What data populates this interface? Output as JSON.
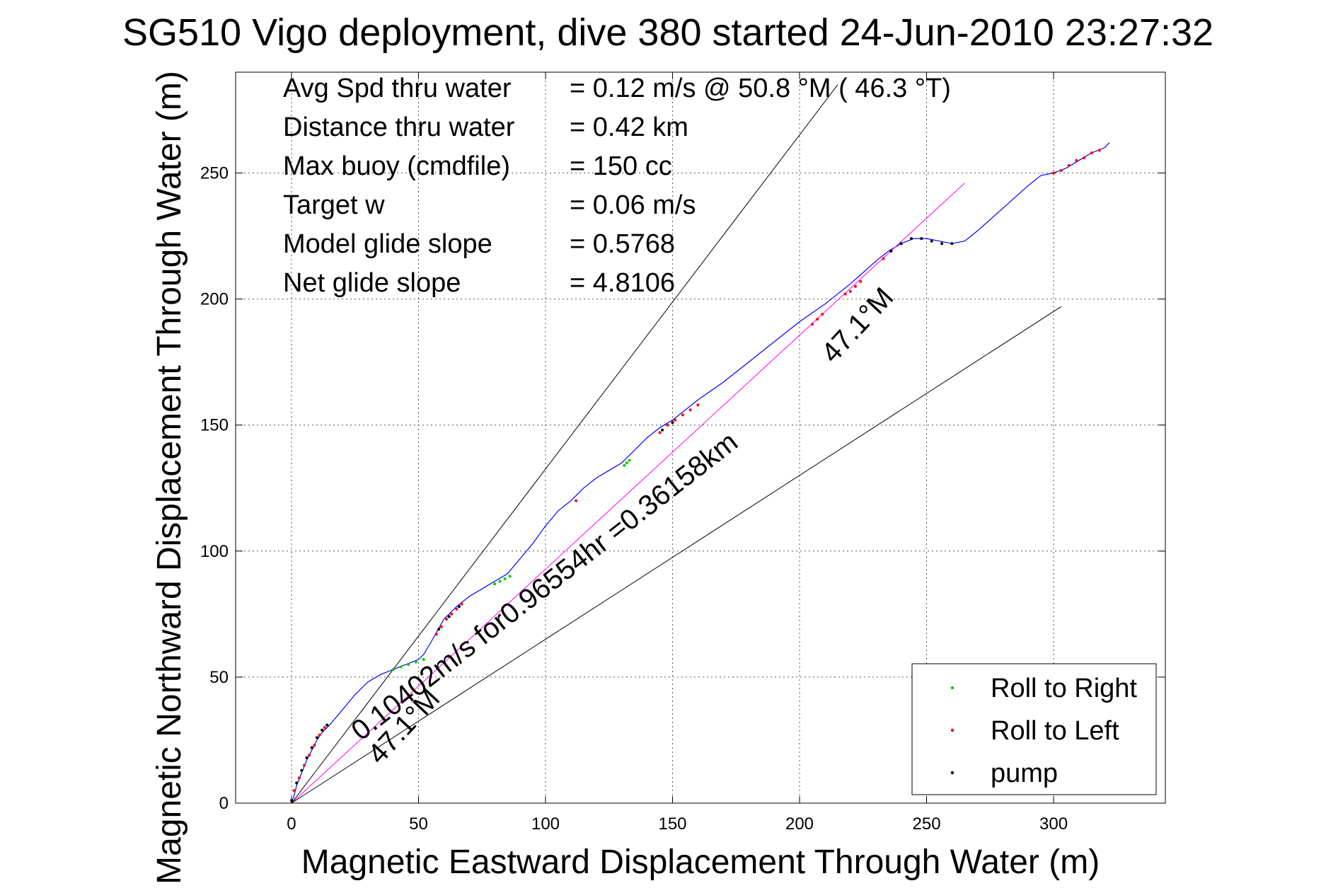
{
  "chart_data": {
    "type": "line",
    "title": "SG510 Vigo deployment, dive 380 started 24-Jun-2010 23:27:32",
    "xlabel": "Magnetic Eastward Displacement Through Water (m)",
    "ylabel": "Magnetic Northward Displacement Through Water (m)",
    "xlim": [
      -22,
      344
    ],
    "ylim": [
      0,
      290
    ],
    "xticks": [
      0,
      50,
      100,
      150,
      200,
      250,
      300
    ],
    "yticks": [
      0,
      50,
      100,
      150,
      200,
      250
    ],
    "grid": true,
    "legend_position": "bottom-right",
    "info_box": {
      "rows": [
        {
          "label": "Avg Spd thru water",
          "value": "=  0.12 m/s @  50.8 °M ( 46.3 °T)"
        },
        {
          "label": "Distance thru water",
          "value": "=  0.42 km"
        },
        {
          "label": "Max buoy (cmdfile)",
          "value": "= 150 cc"
        },
        {
          "label": "Target w",
          "value": "= 0.06 m/s"
        },
        {
          "label": "Model glide slope",
          "value": "= 0.5768"
        },
        {
          "label": "Net glide slope",
          "value": "= 4.8106"
        }
      ]
    },
    "annotations": {
      "heading_upper": "47.1°M",
      "heading_lower": "47.1°M",
      "current_text": "0.10402m/s for0.96554hr =0.36158km"
    },
    "series": [
      {
        "name": "",
        "color": "#0000ff",
        "x": [
          0,
          1,
          2,
          4,
          6,
          8,
          10,
          12,
          15,
          20,
          25,
          30,
          35,
          40,
          45,
          50,
          52,
          55,
          60,
          65,
          70,
          75,
          80,
          85,
          90,
          95,
          100,
          105,
          110,
          115,
          120,
          125,
          130,
          135,
          140,
          145,
          150,
          155,
          160,
          170,
          180,
          190,
          200,
          210,
          220,
          230,
          235,
          240,
          245,
          250,
          255,
          260,
          265,
          270,
          280,
          290,
          295,
          300,
          305,
          310,
          315,
          320,
          322
        ],
        "y": [
          0,
          3,
          7,
          12,
          17,
          21,
          25,
          28,
          31,
          37,
          43,
          48,
          51,
          53,
          55,
          57,
          59,
          64,
          73,
          78,
          82,
          85,
          88,
          91,
          97,
          103,
          110,
          116,
          120,
          125,
          129,
          132,
          135,
          140,
          145,
          149,
          152,
          156,
          160,
          167,
          175,
          183,
          191,
          198,
          206,
          215,
          219,
          222,
          224,
          224,
          223,
          222,
          223,
          227,
          236,
          245,
          249,
          250,
          252,
          255,
          258,
          260,
          262
        ]
      },
      {
        "name": "",
        "color": "#ff00ff",
        "x": [
          0,
          265
        ],
        "y": [
          0,
          246
        ]
      },
      {
        "name": "",
        "color": "#000000",
        "x": [
          0,
          215
        ],
        "y": [
          0,
          285
        ]
      },
      {
        "name": "",
        "color": "#000000",
        "x": [
          0,
          303
        ],
        "y": [
          0,
          197
        ]
      },
      {
        "name": "Roll to Right",
        "color": "#00cc00",
        "x": [
          40,
          43,
          46,
          49,
          52,
          80,
          82,
          84,
          86,
          131,
          132,
          133
        ],
        "y": [
          53,
          54,
          55,
          56,
          57,
          87,
          88,
          89,
          90,
          134,
          135,
          136
        ]
      },
      {
        "name": "Roll to Left",
        "color": "#ff0000",
        "x": [
          1,
          3,
          5,
          7,
          9,
          11,
          13,
          57,
          59,
          61,
          63,
          65,
          67,
          112,
          145,
          148,
          151,
          154,
          157,
          160,
          205,
          207,
          209,
          218,
          220,
          222,
          224,
          233,
          300,
          303,
          306,
          309,
          312,
          315,
          318
        ],
        "y": [
          5,
          10,
          15,
          19,
          23,
          27,
          30,
          67,
          70,
          73,
          75,
          77,
          79,
          120,
          147,
          150,
          152,
          154,
          156,
          158,
          190,
          192,
          194,
          202,
          203,
          205,
          207,
          216,
          250,
          251,
          253,
          255,
          256,
          258,
          259
        ]
      },
      {
        "name": "pump",
        "color": "#000000",
        "x": [
          0,
          2,
          4,
          6,
          8,
          10,
          12,
          14,
          58,
          62,
          66,
          146,
          150,
          236,
          240,
          244,
          248,
          252,
          256,
          260
        ],
        "y": [
          1,
          8,
          13,
          18,
          22,
          26,
          29,
          31,
          69,
          74,
          78,
          148,
          151,
          219,
          222,
          224,
          224,
          223,
          222,
          222
        ]
      }
    ]
  }
}
